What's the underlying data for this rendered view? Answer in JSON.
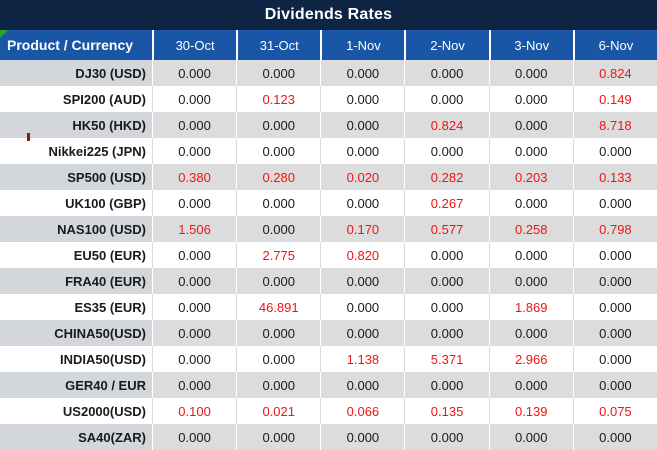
{
  "title": "Dividends Rates",
  "colors": {
    "title_bg": "#0D2443",
    "header_bg": "#1956A6",
    "header_text": "#FFFFFF",
    "band_bg": "#DCDCDC",
    "band_label_bg": "#D3D6DA",
    "white_bg": "#FFFFFF",
    "zero_text": "#1A1A1A",
    "nonzero_text": "#F01414",
    "flag_green": "#28A228"
  },
  "table": {
    "product_header": "Product / Currency",
    "date_columns": [
      "30-Oct",
      "31-Oct",
      "1-Nov",
      "2-Nov",
      "3-Nov",
      "6-Nov"
    ],
    "rows": [
      {
        "product": "DJ30 (USD)",
        "values": [
          "0.000",
          "0.000",
          "0.000",
          "0.000",
          "0.000",
          "0.824"
        ],
        "red": [
          false,
          false,
          false,
          false,
          false,
          true
        ]
      },
      {
        "product": "SPI200 (AUD)",
        "values": [
          "0.000",
          "0.123",
          "0.000",
          "0.000",
          "0.000",
          "0.149"
        ],
        "red": [
          false,
          true,
          false,
          false,
          false,
          true
        ]
      },
      {
        "product": "HK50 (HKD)",
        "values": [
          "0.000",
          "0.000",
          "0.000",
          "0.824",
          "0.000",
          "8.718"
        ],
        "red": [
          false,
          false,
          false,
          true,
          false,
          true
        ]
      },
      {
        "product": "Nikkei225 (JPN)",
        "values": [
          "0.000",
          "0.000",
          "0.000",
          "0.000",
          "0.000",
          "0.000"
        ],
        "red": [
          false,
          false,
          false,
          false,
          false,
          false
        ]
      },
      {
        "product": "SP500 (USD)",
        "values": [
          "0.380",
          "0.280",
          "0.020",
          "0.282",
          "0.203",
          "0.133"
        ],
        "red": [
          true,
          true,
          true,
          true,
          true,
          true
        ]
      },
      {
        "product": "UK100 (GBP)",
        "values": [
          "0.000",
          "0.000",
          "0.000",
          "0.267",
          "0.000",
          "0.000"
        ],
        "red": [
          false,
          false,
          false,
          true,
          false,
          false
        ]
      },
      {
        "product": "NAS100 (USD)",
        "values": [
          "1.506",
          "0.000",
          "0.170",
          "0.577",
          "0.258",
          "0.798"
        ],
        "red": [
          true,
          false,
          true,
          true,
          true,
          true
        ]
      },
      {
        "product": "EU50 (EUR)",
        "values": [
          "0.000",
          "2.775",
          "0.820",
          "0.000",
          "0.000",
          "0.000"
        ],
        "red": [
          false,
          true,
          true,
          false,
          false,
          false
        ]
      },
      {
        "product": "FRA40 (EUR)",
        "values": [
          "0.000",
          "0.000",
          "0.000",
          "0.000",
          "0.000",
          "0.000"
        ],
        "red": [
          false,
          false,
          false,
          false,
          false,
          false
        ]
      },
      {
        "product": "ES35 (EUR)",
        "values": [
          "0.000",
          "46.891",
          "0.000",
          "0.000",
          "1.869",
          "0.000"
        ],
        "red": [
          false,
          true,
          false,
          false,
          true,
          false
        ]
      },
      {
        "product": "CHINA50(USD)",
        "values": [
          "0.000",
          "0.000",
          "0.000",
          "0.000",
          "0.000",
          "0.000"
        ],
        "red": [
          false,
          false,
          false,
          false,
          false,
          false
        ]
      },
      {
        "product": "INDIA50(USD)",
        "values": [
          "0.000",
          "0.000",
          "1.138",
          "5.371",
          "2.966",
          "0.000"
        ],
        "red": [
          false,
          false,
          true,
          true,
          true,
          false
        ]
      },
      {
        "product": "GER40 / EUR",
        "values": [
          "0.000",
          "0.000",
          "0.000",
          "0.000",
          "0.000",
          "0.000"
        ],
        "red": [
          false,
          false,
          false,
          false,
          false,
          false
        ]
      },
      {
        "product": "US2000(USD)",
        "values": [
          "0.100",
          "0.021",
          "0.066",
          "0.135",
          "0.139",
          "0.075"
        ],
        "red": [
          true,
          true,
          true,
          true,
          true,
          true
        ]
      },
      {
        "product": "SA40(ZAR)",
        "values": [
          "0.000",
          "0.000",
          "0.000",
          "0.000",
          "0.000",
          "0.000"
        ],
        "red": [
          false,
          false,
          false,
          false,
          false,
          false
        ]
      }
    ]
  }
}
